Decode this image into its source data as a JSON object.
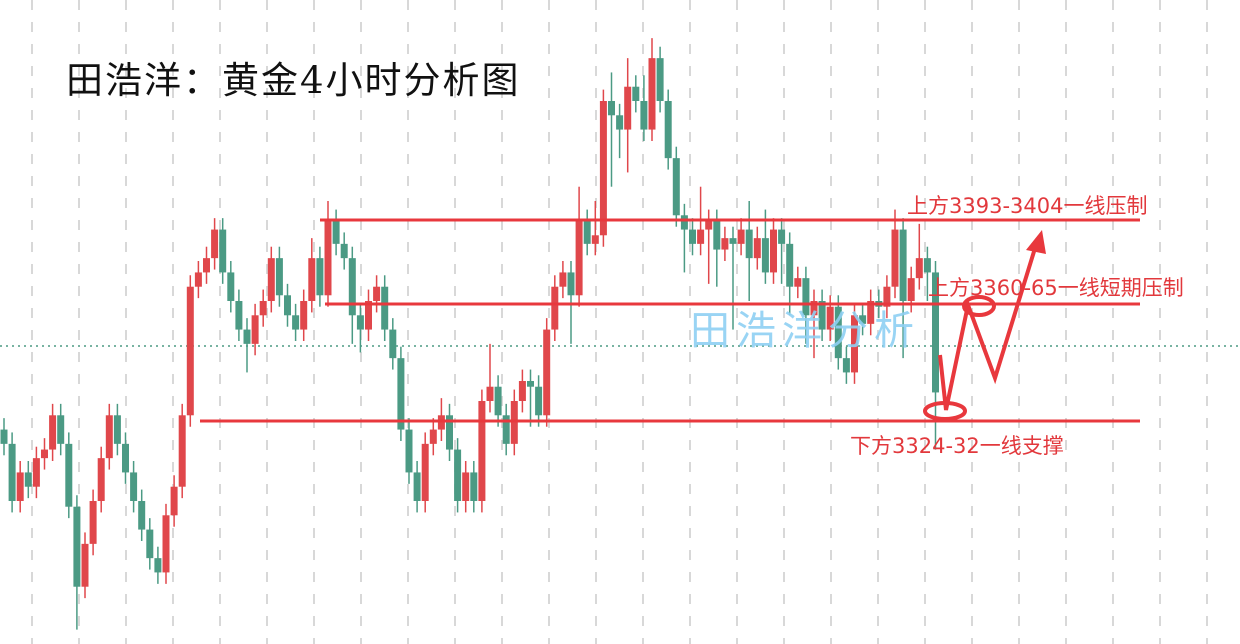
{
  "title": "田浩洋：黄金4小时分析图",
  "watermark": "田浩洋分析",
  "colors": {
    "up": "#e0474b",
    "down": "#4b9a84",
    "annotation": "#e8383d",
    "watermark": "#8fd0f3",
    "grid": "#d8d8d8"
  },
  "chart_data": {
    "type": "candlestick",
    "title": "田浩洋：黄金4小时分析图",
    "grid": true,
    "open": [
      3325,
      3320,
      3300,
      3310,
      3305,
      3315,
      3318,
      3330,
      3320,
      3298,
      3270,
      3285,
      3300,
      3315,
      3330,
      3320,
      3310,
      3300,
      3290,
      3280,
      3275,
      3295,
      3305,
      3330,
      3375,
      3380,
      3385,
      3395,
      3380,
      3370,
      3360,
      3355,
      3365,
      3370,
      3385,
      3372,
      3365,
      3360,
      3370,
      3385,
      3372,
      3398,
      3390,
      3385,
      3365,
      3360,
      3370,
      3375,
      3360,
      3350,
      3325,
      3310,
      3300,
      3320,
      3325,
      3330,
      3318,
      3300,
      3310,
      3300,
      3335,
      3340,
      3330,
      3320,
      3335,
      3342,
      3340,
      3330,
      3360,
      3375,
      3380,
      3372,
      3398,
      3390,
      3393,
      3440,
      3435,
      3430,
      3445,
      3440,
      3430,
      3455,
      3440,
      3420,
      3400,
      3395,
      3390,
      3395,
      3398,
      3388,
      3392,
      3390,
      3395,
      3385,
      3392,
      3380,
      3395,
      3390,
      3375,
      3378,
      3365,
      3370,
      3360,
      3368,
      3350,
      3345,
      3365,
      3362,
      3370,
      3368,
      3375,
      3395,
      3370,
      3378,
      3385,
      3380
    ],
    "high": [
      3329,
      3324,
      3314,
      3314,
      3319,
      3322,
      3334,
      3334,
      3324,
      3302,
      3289,
      3304,
      3319,
      3334,
      3334,
      3324,
      3314,
      3304,
      3294,
      3284,
      3299,
      3309,
      3334,
      3379,
      3384,
      3389,
      3399,
      3399,
      3384,
      3374,
      3364,
      3369,
      3374,
      3389,
      3389,
      3376,
      3369,
      3374,
      3392,
      3389,
      3405,
      3402,
      3394,
      3389,
      3369,
      3374,
      3379,
      3379,
      3364,
      3354,
      3329,
      3314,
      3324,
      3329,
      3336,
      3334,
      3322,
      3314,
      3314,
      3339,
      3355,
      3344,
      3334,
      3339,
      3346,
      3346,
      3344,
      3364,
      3379,
      3384,
      3384,
      3410,
      3402,
      3405,
      3444,
      3450,
      3439,
      3455,
      3449,
      3449,
      3462,
      3459,
      3444,
      3424,
      3404,
      3399,
      3410,
      3402,
      3402,
      3396,
      3396,
      3399,
      3405,
      3396,
      3402,
      3399,
      3399,
      3394,
      3382,
      3382,
      3374,
      3374,
      3372,
      3372,
      3354,
      3369,
      3369,
      3374,
      3374,
      3379,
      3402,
      3399,
      3382,
      3397,
      3389,
      3384
    ],
    "low": [
      3316,
      3296,
      3296,
      3301,
      3301,
      3311,
      3314,
      3316,
      3294,
      3255,
      3266,
      3281,
      3296,
      3311,
      3316,
      3306,
      3296,
      3286,
      3276,
      3271,
      3271,
      3291,
      3301,
      3326,
      3371,
      3376,
      3381,
      3376,
      3366,
      3356,
      3345,
      3351,
      3361,
      3366,
      3368,
      3361,
      3356,
      3356,
      3366,
      3368,
      3368,
      3386,
      3381,
      3355,
      3352,
      3356,
      3366,
      3356,
      3346,
      3321,
      3306,
      3296,
      3296,
      3316,
      3321,
      3314,
      3296,
      3296,
      3296,
      3296,
      3331,
      3326,
      3316,
      3316,
      3331,
      3326,
      3326,
      3326,
      3356,
      3371,
      3355,
      3368,
      3386,
      3386,
      3389,
      3410,
      3420,
      3415,
      3436,
      3426,
      3426,
      3436,
      3416,
      3396,
      3380,
      3386,
      3386,
      3376,
      3375,
      3384,
      3360,
      3386,
      3370,
      3381,
      3376,
      3376,
      3376,
      3365,
      3371,
      3355,
      3350,
      3356,
      3356,
      3346,
      3341,
      3341,
      3358,
      3358,
      3364,
      3364,
      3371,
      3350,
      3366,
      3374,
      3370,
      3318
    ],
    "close": [
      3320,
      3300,
      3310,
      3305,
      3315,
      3318,
      3330,
      3320,
      3298,
      3270,
      3285,
      3300,
      3315,
      3330,
      3320,
      3310,
      3300,
      3290,
      3280,
      3275,
      3295,
      3305,
      3330,
      3375,
      3380,
      3385,
      3395,
      3380,
      3370,
      3360,
      3355,
      3365,
      3370,
      3385,
      3372,
      3365,
      3360,
      3370,
      3385,
      3372,
      3398,
      3390,
      3385,
      3365,
      3360,
      3370,
      3375,
      3360,
      3350,
      3325,
      3310,
      3300,
      3320,
      3325,
      3330,
      3318,
      3300,
      3310,
      3300,
      3335,
      3340,
      3330,
      3320,
      3335,
      3342,
      3340,
      3330,
      3360,
      3375,
      3380,
      3372,
      3398,
      3390,
      3393,
      3440,
      3435,
      3430,
      3445,
      3440,
      3430,
      3455,
      3440,
      3420,
      3400,
      3395,
      3390,
      3395,
      3398,
      3388,
      3392,
      3390,
      3395,
      3385,
      3392,
      3380,
      3395,
      3390,
      3375,
      3378,
      3365,
      3370,
      3360,
      3368,
      3350,
      3345,
      3365,
      3362,
      3370,
      3368,
      3375,
      3395,
      3370,
      3378,
      3385,
      3380,
      3338
    ],
    "current_price_line": 3350,
    "levels": [
      {
        "label": "上方3393-3404一线压制",
        "price": 3398
      },
      {
        "label": "上方3360-65一线短期压制",
        "price": 3362
      },
      {
        "label": "下方3324-32一线支撑",
        "price": 3328
      }
    ]
  }
}
